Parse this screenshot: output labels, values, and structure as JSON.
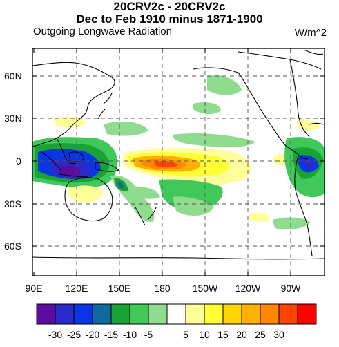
{
  "header": {
    "title_line1": "20CRV2c - 20CRV2c",
    "title_line2": "Dec to Feb 1910 minus 1871-1900",
    "variable": "Outgoing Longwave Radiation",
    "units": "W/m^2"
  },
  "map": {
    "lat_labels": [
      "60N",
      "30N",
      "0",
      "30S",
      "60S"
    ],
    "lon_labels": [
      "90E",
      "120E",
      "150E",
      "180",
      "150W",
      "120W",
      "90W"
    ]
  },
  "colorbar": {
    "tick_labels": [
      "-30",
      "-25",
      "-20",
      "-15",
      "-10",
      "-5",
      "5",
      "10",
      "15",
      "20",
      "25",
      "30"
    ],
    "colors": [
      "#5a0d9e",
      "#2a2acb",
      "#0a35e6",
      "#0f6aa0",
      "#1aa335",
      "#40c85a",
      "#8fdc8f",
      "#ffffff",
      "#ffff9a",
      "#ffff33",
      "#ffd700",
      "#ffb000",
      "#ff8800",
      "#ff4400",
      "#ff0000"
    ]
  }
}
